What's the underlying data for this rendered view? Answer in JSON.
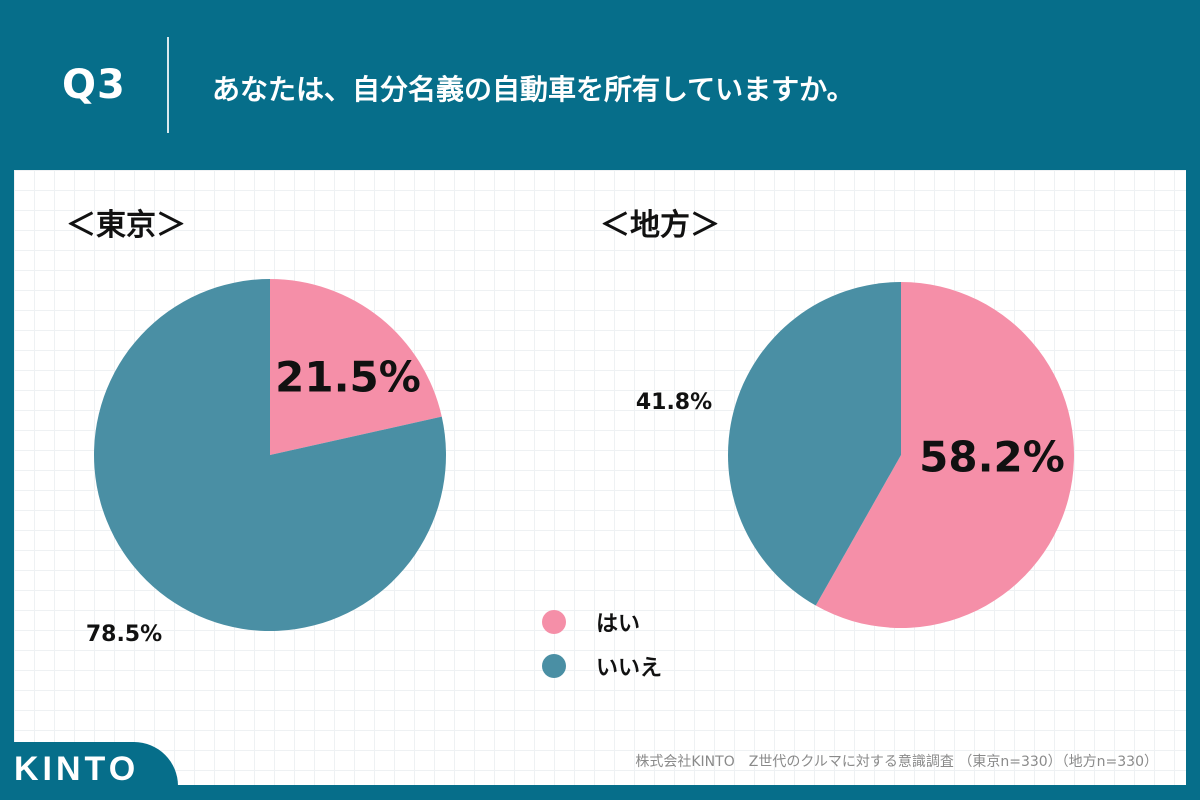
{
  "header": {
    "q_label": "Q3",
    "question": "あなたは、自分名義の自動車を所有していますか。"
  },
  "chart_data": [
    {
      "type": "pie",
      "title": "＜東京＞",
      "categories": [
        "はい",
        "いいえ"
      ],
      "values": [
        21.5,
        78.5
      ],
      "labels": [
        "21.5%",
        "78.5%"
      ]
    },
    {
      "type": "pie",
      "title": "＜地方＞",
      "categories": [
        "はい",
        "いいえ"
      ],
      "values": [
        58.2,
        41.8
      ],
      "labels": [
        "58.2%",
        "41.8%"
      ]
    }
  ],
  "legend": [
    {
      "label": "はい",
      "color": "#f58fa8"
    },
    {
      "label": "いいえ",
      "color": "#4a8fa4"
    }
  ],
  "colors": {
    "yes": "#f58fa8",
    "no": "#4a8fa4",
    "header_bg": "#066e8a"
  },
  "footer": {
    "note": "株式会社KINTO　Z世代のクルマに対する意識調査 （東京n=330）（地方n=330）",
    "logo": "KINTO"
  }
}
